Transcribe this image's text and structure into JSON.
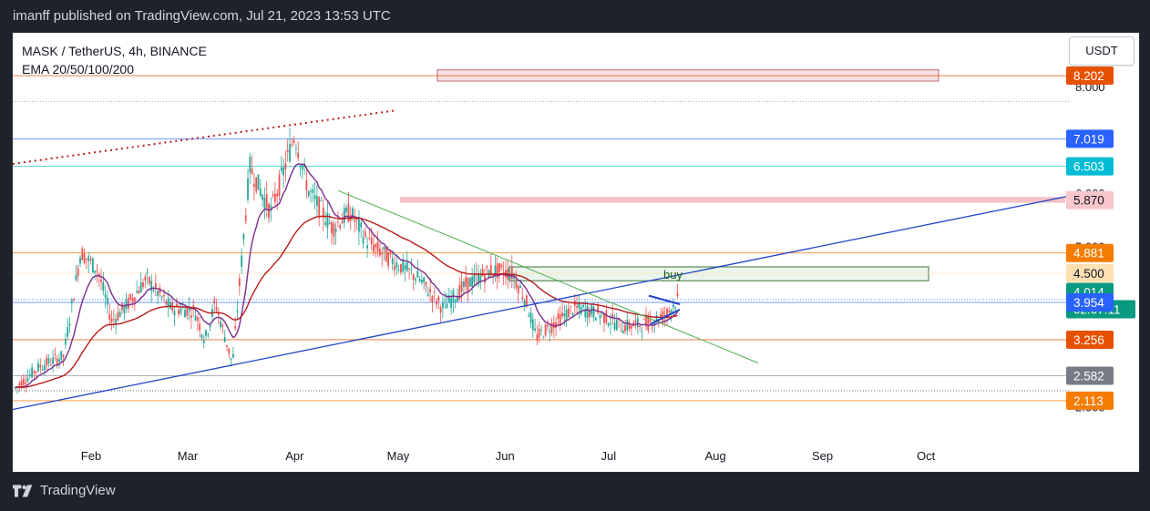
{
  "header": {
    "published": "imanff published on TradingView.com, Jul 21, 2023 13:53 UTC"
  },
  "pane": {
    "symbol": "MASK / TetherUS, 4h, BINANCE",
    "indicator": "EMA 20/50/100/200"
  },
  "unit_button": "USDT",
  "footer": {
    "brand": "TradingView"
  },
  "colors": {
    "up": "#26a69a",
    "down": "#ef5350",
    "ema_fast": "#7b2d8e",
    "ema_slow": "#b71c1c",
    "trend": "#2144c8",
    "down_trend": "#4caf50"
  },
  "chart_data": {
    "type": "candlestick",
    "title": "MASK / TetherUS, 4h, BINANCE",
    "ylim": [
      1.6,
      8.8
    ],
    "x_ticks": [
      "Feb",
      "Mar",
      "Apr",
      "May",
      "Jun",
      "Jul",
      "Aug",
      "Sep",
      "Oct"
    ],
    "x_tick_dates": [
      "2023-02-01",
      "2023-03-01",
      "2023-04-01",
      "2023-05-01",
      "2023-06-01",
      "2023-07-01",
      "2023-08-01",
      "2023-09-01",
      "2023-10-01"
    ],
    "price_series_approx": [
      {
        "date": "2023-01-10",
        "value": 2.35
      },
      {
        "date": "2023-01-17",
        "value": 2.75
      },
      {
        "date": "2023-01-24",
        "value": 2.95
      },
      {
        "date": "2023-01-29",
        "value": 4.9
      },
      {
        "date": "2023-02-03",
        "value": 4.55
      },
      {
        "date": "2023-02-07",
        "value": 3.6
      },
      {
        "date": "2023-02-12",
        "value": 3.95
      },
      {
        "date": "2023-02-17",
        "value": 4.4
      },
      {
        "date": "2023-02-24",
        "value": 3.85
      },
      {
        "date": "2023-03-03",
        "value": 3.8
      },
      {
        "date": "2023-03-06",
        "value": 3.25
      },
      {
        "date": "2023-03-09",
        "value": 3.95
      },
      {
        "date": "2023-03-14",
        "value": 2.8
      },
      {
        "date": "2023-03-19",
        "value": 6.5
      },
      {
        "date": "2023-03-25",
        "value": 5.65
      },
      {
        "date": "2023-03-29",
        "value": 6.45
      },
      {
        "date": "2023-04-01",
        "value": 7.1
      },
      {
        "date": "2023-04-05",
        "value": 6.05
      },
      {
        "date": "2023-04-12",
        "value": 5.35
      },
      {
        "date": "2023-04-17",
        "value": 5.65
      },
      {
        "date": "2023-04-22",
        "value": 5.1
      },
      {
        "date": "2023-04-28",
        "value": 4.8
      },
      {
        "date": "2023-05-07",
        "value": 4.4
      },
      {
        "date": "2023-05-14",
        "value": 3.85
      },
      {
        "date": "2023-05-21",
        "value": 4.3
      },
      {
        "date": "2023-05-28",
        "value": 4.55
      },
      {
        "date": "2023-06-03",
        "value": 4.5
      },
      {
        "date": "2023-06-07",
        "value": 4.0
      },
      {
        "date": "2023-06-10",
        "value": 3.3
      },
      {
        "date": "2023-06-16",
        "value": 3.6
      },
      {
        "date": "2023-06-21",
        "value": 3.85
      },
      {
        "date": "2023-06-28",
        "value": 3.75
      },
      {
        "date": "2023-07-05",
        "value": 3.5
      },
      {
        "date": "2023-07-12",
        "value": 3.55
      },
      {
        "date": "2023-07-18",
        "value": 3.75
      },
      {
        "date": "2023-07-21",
        "value": 4.014
      }
    ],
    "price_labels": [
      {
        "text": "8.202",
        "value": 8.202,
        "color": "#e65100"
      },
      {
        "text": "7.019",
        "value": 7.019,
        "color": "#2962ff"
      },
      {
        "text": "6.503",
        "value": 6.503,
        "color": "#00bcd4"
      },
      {
        "text": "5.870",
        "value": 5.87,
        "color": "#f8c6cb"
      },
      {
        "text": "4.881",
        "value": 4.881,
        "color": "#f57c00"
      },
      {
        "text": "4.500",
        "value": 4.5,
        "color": "#ffe0b2"
      },
      {
        "text": "4.014",
        "value": 4.014,
        "color": "#089981"
      },
      {
        "text": "02:07:11",
        "value": 3.83,
        "color": "#089981"
      },
      {
        "text": "3.954",
        "value": 3.954,
        "color": "#2962ff"
      },
      {
        "text": "3.256",
        "value": 3.256,
        "color": "#e65100"
      },
      {
        "text": "2.582",
        "value": 2.582,
        "color": "#787b86"
      },
      {
        "text": "2.113",
        "value": 2.113,
        "color": "#f57c00"
      }
    ],
    "axis_numbers_visible": [
      {
        "text": "8.000",
        "value": 8.0
      },
      {
        "text": "6.000",
        "value": 6.0
      },
      {
        "text": "5.000",
        "value": 5.0
      },
      {
        "text": "2.000",
        "value": 2.0
      }
    ],
    "annotation": {
      "text": "buy",
      "value": 4.48
    }
  }
}
